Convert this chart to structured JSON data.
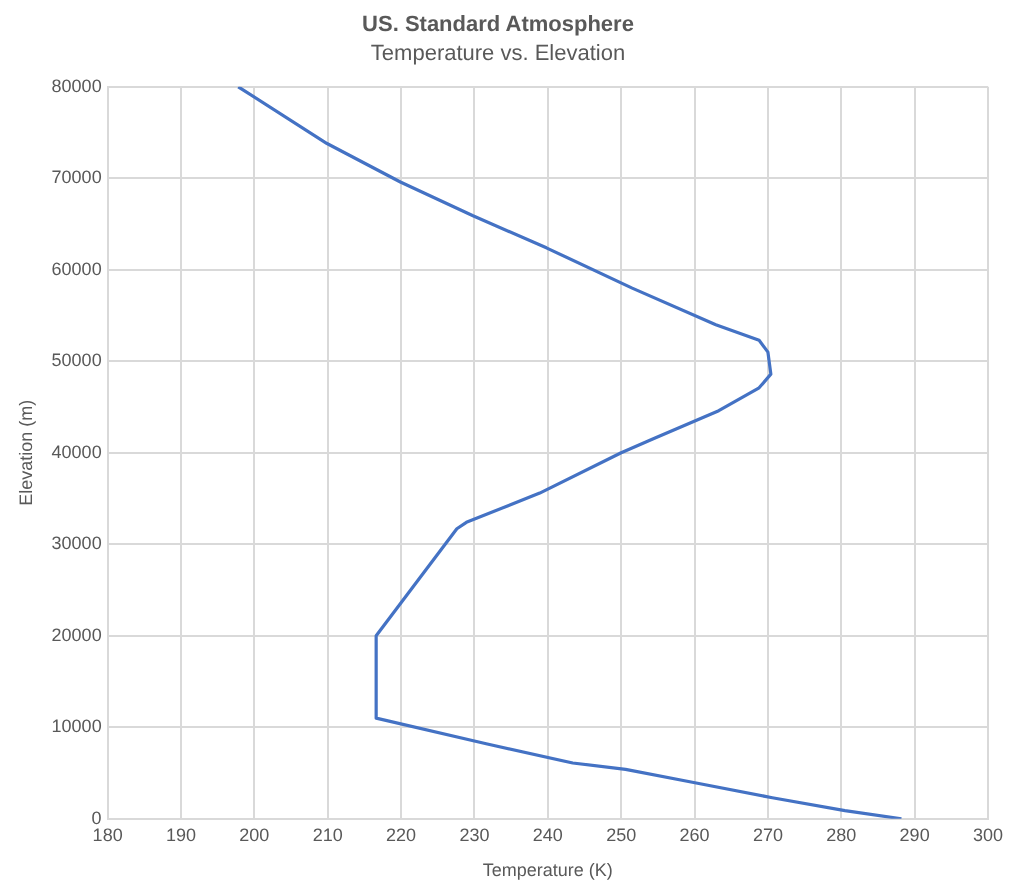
{
  "chart_data": {
    "type": "line",
    "title": "US. Standard Atmosphere",
    "subtitle": "Temperature vs. Elevation",
    "xlabel": "Temperature (K)",
    "ylabel": "Elevation (m)",
    "x": [
      288.2,
      280.5,
      270.6,
      259.7,
      250.6,
      243.4,
      231.6,
      216.6,
      216.6,
      227.6,
      228.9,
      238.9,
      250.0,
      254.3,
      263.3,
      268.8,
      270.4,
      270.0,
      268.8,
      262.9,
      251.5,
      239.8,
      229.8,
      219.9,
      209.9,
      197.8
    ],
    "values": [
      0,
      900,
      2300,
      4000,
      5400,
      6100,
      8200,
      11000,
      20000,
      31700,
      32400,
      35600,
      40000,
      41500,
      44600,
      47100,
      48600,
      51000,
      52300,
      54000,
      58000,
      62400,
      65900,
      69600,
      73800,
      80000
    ],
    "color": "#4472c4",
    "xlim": [
      180,
      300
    ],
    "xticks": [
      180,
      190,
      200,
      210,
      220,
      230,
      240,
      250,
      260,
      270,
      280,
      290,
      300
    ],
    "ylim": [
      0,
      80000
    ],
    "yticks": [
      0,
      10000,
      20000,
      30000,
      40000,
      50000,
      60000,
      70000,
      80000
    ],
    "grid": true,
    "legend": false,
    "marker": "none",
    "line_style": "solid"
  }
}
